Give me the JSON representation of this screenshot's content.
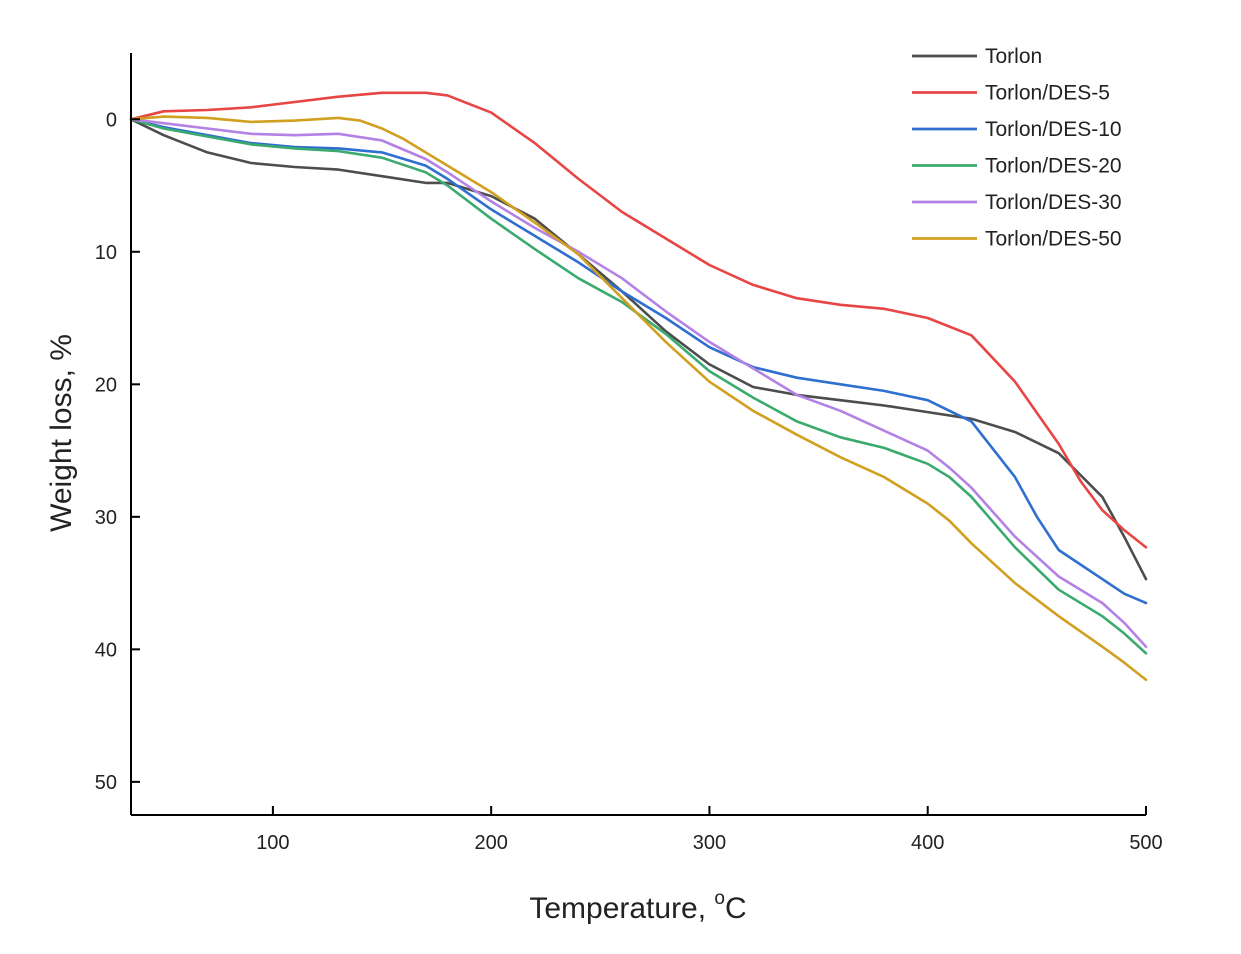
{
  "chart_data": {
    "type": "line",
    "title": "",
    "xlabel": "Temperature, ",
    "xlabel_superscript": "o",
    "xlabel_unit": "C",
    "ylabel": "Weight loss, %",
    "xlim": [
      35,
      500
    ],
    "ylim": [
      -5,
      52.5
    ],
    "y_inverted": true,
    "grid": false,
    "legend_position": "top-right",
    "x_ticks": [
      100,
      200,
      300,
      400,
      500
    ],
    "y_ticks": [
      0,
      10,
      20,
      30,
      40,
      50
    ],
    "series": [
      {
        "name": "Torlon",
        "color": "#4d4d4d",
        "x": [
          35,
          50,
          70,
          90,
          110,
          130,
          150,
          170,
          180,
          200,
          220,
          240,
          260,
          280,
          300,
          320,
          340,
          360,
          380,
          400,
          420,
          440,
          460,
          480,
          490,
          500
        ],
        "y": [
          0,
          1.2,
          2.5,
          3.3,
          3.6,
          3.8,
          4.3,
          4.8,
          4.8,
          5.8,
          7.5,
          10.2,
          13.0,
          16.0,
          18.5,
          20.2,
          20.8,
          21.2,
          21.6,
          22.1,
          22.6,
          23.6,
          25.2,
          28.5,
          31.5,
          34.7
        ]
      },
      {
        "name": "Torlon/DES-5",
        "color": "#e84545",
        "x": [
          35,
          50,
          70,
          90,
          110,
          130,
          150,
          170,
          180,
          200,
          220,
          240,
          260,
          280,
          300,
          320,
          340,
          360,
          380,
          400,
          420,
          440,
          460,
          470,
          480,
          490,
          500
        ],
        "y": [
          0,
          -0.6,
          -0.7,
          -0.9,
          -1.3,
          -1.7,
          -2.0,
          -2.0,
          -1.8,
          -0.5,
          1.8,
          4.5,
          7.0,
          9.0,
          11.0,
          12.5,
          13.5,
          14.0,
          14.3,
          15.0,
          16.3,
          19.8,
          24.5,
          27.3,
          29.5,
          31.0,
          32.3
        ]
      },
      {
        "name": "Torlon/DES-10",
        "color": "#2f6fd0",
        "x": [
          35,
          50,
          70,
          90,
          110,
          130,
          150,
          170,
          180,
          200,
          220,
          240,
          260,
          280,
          300,
          320,
          340,
          360,
          380,
          400,
          410,
          420,
          440,
          450,
          460,
          480,
          490,
          500
        ],
        "y": [
          0,
          0.6,
          1.2,
          1.8,
          2.1,
          2.2,
          2.5,
          3.5,
          4.5,
          6.8,
          8.8,
          10.8,
          13.0,
          15.0,
          17.2,
          18.7,
          19.5,
          20.0,
          20.5,
          21.2,
          22.0,
          22.8,
          27.0,
          30.0,
          32.5,
          34.7,
          35.8,
          36.5
        ]
      },
      {
        "name": "Torlon/DES-20",
        "color": "#3aaa6e",
        "x": [
          35,
          50,
          70,
          90,
          110,
          130,
          150,
          170,
          180,
          200,
          220,
          240,
          260,
          280,
          300,
          320,
          340,
          360,
          380,
          400,
          410,
          420,
          440,
          460,
          480,
          490,
          500
        ],
        "y": [
          0,
          0.7,
          1.3,
          1.9,
          2.2,
          2.4,
          2.9,
          4.0,
          5.0,
          7.5,
          9.8,
          12.0,
          13.8,
          16.2,
          19.0,
          21.0,
          22.8,
          24.0,
          24.8,
          26.0,
          27.0,
          28.5,
          32.3,
          35.5,
          37.5,
          38.8,
          40.3
        ]
      },
      {
        "name": "Torlon/DES-30",
        "color": "#b482e4",
        "x": [
          35,
          50,
          70,
          90,
          110,
          130,
          150,
          170,
          180,
          200,
          220,
          240,
          260,
          280,
          300,
          320,
          340,
          360,
          380,
          400,
          410,
          420,
          440,
          460,
          480,
          490,
          500
        ],
        "y": [
          0,
          0.3,
          0.7,
          1.1,
          1.2,
          1.1,
          1.6,
          3.0,
          4.0,
          6.2,
          8.2,
          10.0,
          12.0,
          14.5,
          16.8,
          18.8,
          20.8,
          22.0,
          23.5,
          25.0,
          26.3,
          27.8,
          31.5,
          34.5,
          36.5,
          38.0,
          39.8
        ]
      },
      {
        "name": "Torlon/DES-50",
        "color": "#d1a020",
        "x": [
          35,
          50,
          70,
          90,
          110,
          130,
          140,
          150,
          160,
          180,
          200,
          220,
          240,
          260,
          280,
          300,
          320,
          340,
          360,
          380,
          400,
          410,
          420,
          440,
          460,
          480,
          490,
          500
        ],
        "y": [
          0,
          -0.2,
          -0.1,
          0.2,
          0.1,
          -0.1,
          0.1,
          0.7,
          1.5,
          3.5,
          5.5,
          7.8,
          10.2,
          13.5,
          16.8,
          19.8,
          22.0,
          23.8,
          25.5,
          27.0,
          29.0,
          30.3,
          32.0,
          35.0,
          37.5,
          39.8,
          41.0,
          42.3
        ]
      }
    ]
  }
}
